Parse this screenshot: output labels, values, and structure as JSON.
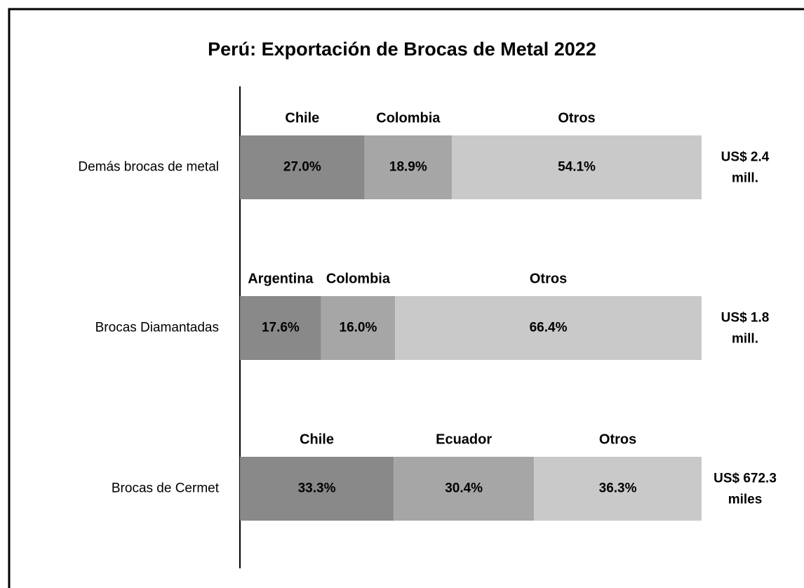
{
  "chart_data": {
    "type": "bar",
    "orientation": "horizontal",
    "stacked": true,
    "title": "Perú: Exportación de Brocas de Metal 2022",
    "colors": [
      "#898989",
      "#a6a6a6",
      "#c9c9c9"
    ],
    "xlim": [
      0,
      100
    ],
    "categories": [
      "Demás brocas de metal",
      "Brocas Diamantadas",
      "Brocas de Cermet"
    ],
    "bars": [
      {
        "names": [
          "Chile",
          "Colombia",
          "Otros"
        ],
        "values": [
          27.0,
          18.9,
          54.1
        ],
        "value_labels": [
          "27.0%",
          "18.9%",
          "54.1%"
        ],
        "total_label": [
          "US$ 2.4",
          "mill."
        ]
      },
      {
        "names": [
          "Argentina",
          "Colombia",
          "Otros"
        ],
        "values": [
          17.6,
          16.0,
          66.4
        ],
        "value_labels": [
          "17.6%",
          "16.0%",
          "66.4%"
        ],
        "total_label": [
          "US$ 1.8",
          "mill."
        ]
      },
      {
        "names": [
          "Chile",
          "Ecuador",
          "Otros"
        ],
        "values": [
          33.3,
          30.4,
          36.3
        ],
        "value_labels": [
          "33.3%",
          "30.4%",
          "36.3%"
        ],
        "total_label": [
          "US$ 672.3",
          "miles"
        ]
      }
    ]
  }
}
